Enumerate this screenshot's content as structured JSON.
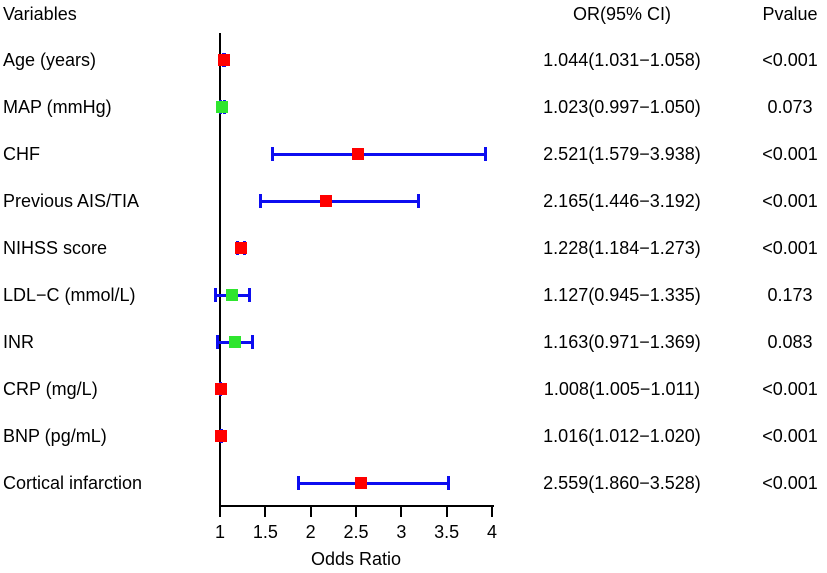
{
  "headers": {
    "variables": "Variables",
    "or_ci": "OR(95% CI)",
    "pvalue": "Pvalue"
  },
  "axis": {
    "label": "Odds Ratio",
    "min": 1,
    "max": 4,
    "ticks": [
      "1",
      "1.5",
      "2",
      "2.5",
      "3",
      "3.5",
      "4"
    ],
    "reference_value": 1
  },
  "colors": {
    "significant_marker": "#ff0000",
    "nonsignificant_marker": "#2ee52e",
    "ci_bar": "#0d0df0",
    "line": "#000000"
  },
  "chart_data": {
    "type": "forest",
    "title": "",
    "xlabel": "Odds Ratio",
    "xlim": [
      1,
      4
    ],
    "columns": [
      "Variables",
      "OR(95% CI)",
      "Pvalue"
    ],
    "rows": [
      {
        "label": "Age (years)",
        "or": 1.044,
        "ci_low": 1.031,
        "ci_high": 1.058,
        "or_ci_text": "1.044(1.031−1.058)",
        "pvalue": "<0.001",
        "significant": true
      },
      {
        "label": "MAP (mmHg)",
        "or": 1.023,
        "ci_low": 0.997,
        "ci_high": 1.05,
        "or_ci_text": "1.023(0.997−1.050)",
        "pvalue": "0.073",
        "significant": false
      },
      {
        "label": "CHF",
        "or": 2.521,
        "ci_low": 1.579,
        "ci_high": 3.938,
        "or_ci_text": "2.521(1.579−3.938)",
        "pvalue": "<0.001",
        "significant": true
      },
      {
        "label": "Previous AIS/TIA",
        "or": 2.165,
        "ci_low": 1.446,
        "ci_high": 3.192,
        "or_ci_text": "2.165(1.446−3.192)",
        "pvalue": "<0.001",
        "significant": true
      },
      {
        "label": "NIHSS score",
        "or": 1.228,
        "ci_low": 1.184,
        "ci_high": 1.273,
        "or_ci_text": "1.228(1.184−1.273)",
        "pvalue": "<0.001",
        "significant": true
      },
      {
        "label": "LDL−C (mmol/L)",
        "or": 1.127,
        "ci_low": 0.945,
        "ci_high": 1.335,
        "or_ci_text": "1.127(0.945−1.335)",
        "pvalue": "0.173",
        "significant": false
      },
      {
        "label": "INR",
        "or": 1.163,
        "ci_low": 0.971,
        "ci_high": 1.369,
        "or_ci_text": "1.163(0.971−1.369)",
        "pvalue": "0.083",
        "significant": false
      },
      {
        "label": "CRP (mg/L)",
        "or": 1.008,
        "ci_low": 1.005,
        "ci_high": 1.011,
        "or_ci_text": "1.008(1.005−1.011)",
        "pvalue": "<0.001",
        "significant": true
      },
      {
        "label": "BNP (pg/mL)",
        "or": 1.016,
        "ci_low": 1.012,
        "ci_high": 1.02,
        "or_ci_text": "1.016(1.012−1.020)",
        "pvalue": "<0.001",
        "significant": true
      },
      {
        "label": "Cortical infarction",
        "or": 2.559,
        "ci_low": 1.86,
        "ci_high": 3.528,
        "or_ci_text": "2.559(1.860−3.528)",
        "pvalue": "<0.001",
        "significant": true
      }
    ]
  }
}
